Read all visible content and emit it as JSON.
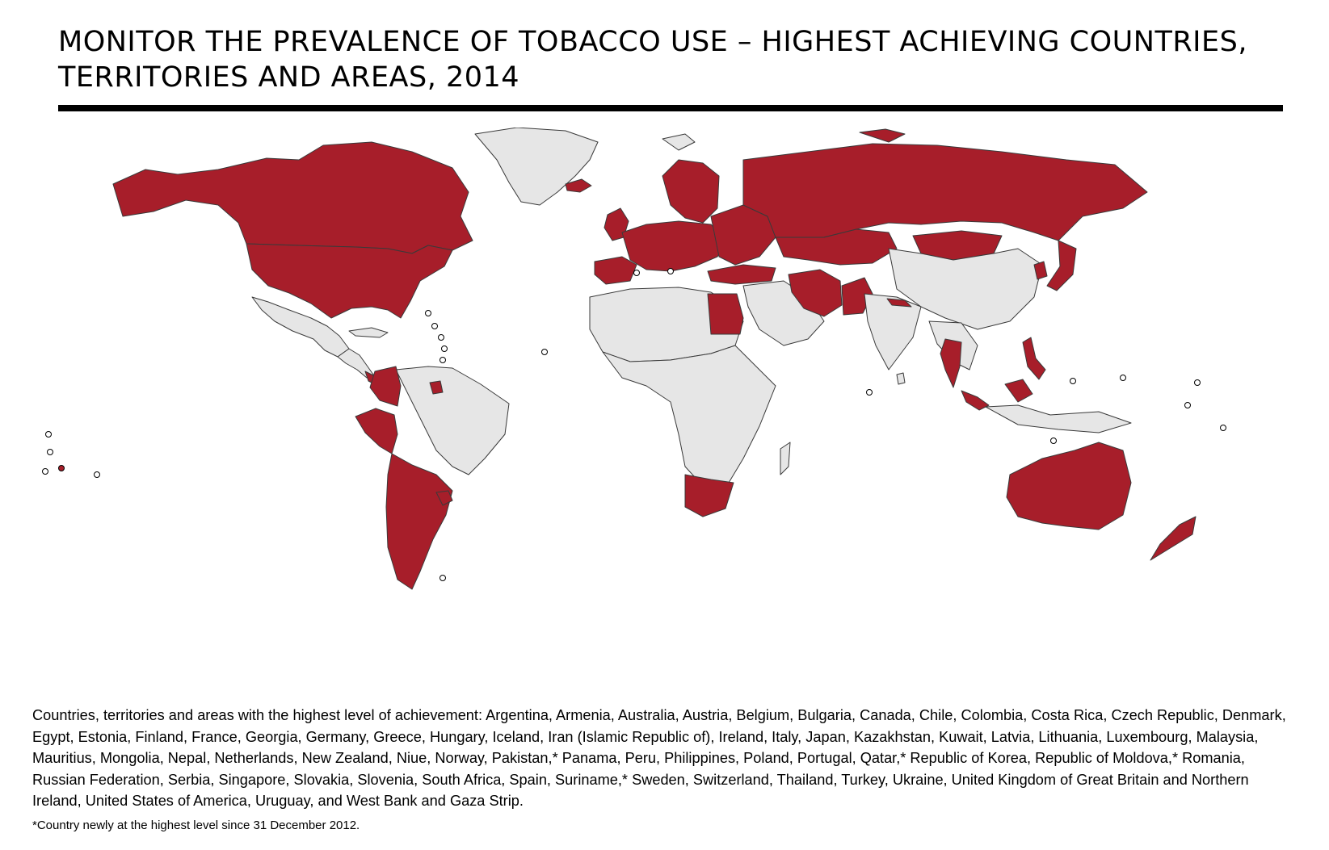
{
  "title": {
    "line1": "MONITOR THE PREVALENCE OF TOBACCO USE – HIGHEST ACHIEVING COUNTRIES,",
    "line2": "TERRITORIES AND AREAS, 2014"
  },
  "legend_colors": {
    "highest_achievement": "#a71e2a",
    "other": "#e6e6e6",
    "border": "#3a3a3a"
  },
  "caption": {
    "line1": "Countries, territories and areas with the highest level of achievement: Argentina, Armenia, Australia, Austria, Belgium, Bulgaria, Canada, Chile, Colombia, Costa Rica, Czech Republic, Denmark,",
    "line2": "Egypt, Estonia, Finland, France, Georgia, Germany, Greece, Hungary, Iceland, Iran (Islamic Republic of), Ireland, Italy, Japan, Kazakhstan, Kuwait, Latvia, Lithuania, Luxembourg, Malaysia,",
    "line3": "Mauritius, Mongolia, Nepal, Netherlands, New Zealand, Niue, Norway, Pakistan,* Panama, Peru, Philippines, Poland, Portugal, Qatar,* Republic of Korea, Republic of Moldova,* Romania,",
    "line4": "Russian Federation, Serbia, Singapore, Slovakia, Slovenia, South Africa, Spain, Suriname,* Sweden, Switzerland, Thailand, Turkey, Ukraine, United Kingdom of Great Britain and Northern",
    "line5": "Ireland, United States of America, Uruguay, and West Bank and Gaza Strip."
  },
  "footnote": "*Country newly at the highest level since 31 December 2012."
}
